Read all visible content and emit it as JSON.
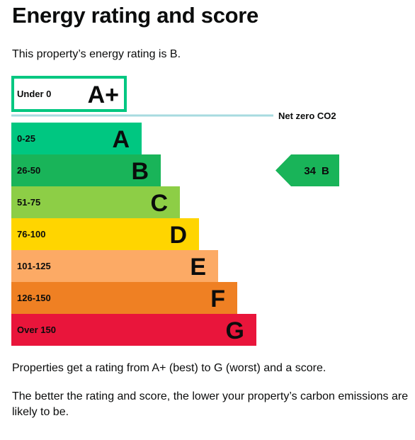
{
  "page": {
    "title": "Energy rating and score",
    "intro": "This property’s energy rating is B.",
    "footer_p1": "Properties get a rating from A+ (best) to G (worst) and a score.",
    "footer_p2": "The better the rating and score, the lower your property’s carbon emissions are likely to be."
  },
  "chart_data": {
    "type": "bar",
    "net_zero_label": "Net zero CO2",
    "bands": [
      {
        "range": "Under 0",
        "letter": "A+",
        "color": "#ffffff",
        "outline": "#00c781",
        "length": 0
      },
      {
        "range": "0-25",
        "letter": "A",
        "color": "#00c781",
        "length": 1
      },
      {
        "range": "26-50",
        "letter": "B",
        "color": "#19b459",
        "length": 2
      },
      {
        "range": "51-75",
        "letter": "C",
        "color": "#8dce46",
        "length": 3
      },
      {
        "range": "76-100",
        "letter": "D",
        "color": "#ffd500",
        "length": 4
      },
      {
        "range": "101-125",
        "letter": "E",
        "color": "#fcaa65",
        "length": 5
      },
      {
        "range": "126-150",
        "letter": "F",
        "color": "#ef8023",
        "length": 6
      },
      {
        "range": "Over 150",
        "letter": "G",
        "color": "#e9153b",
        "length": 7
      }
    ],
    "current": {
      "score": "34",
      "letter": "B",
      "color": "#19b459"
    }
  }
}
